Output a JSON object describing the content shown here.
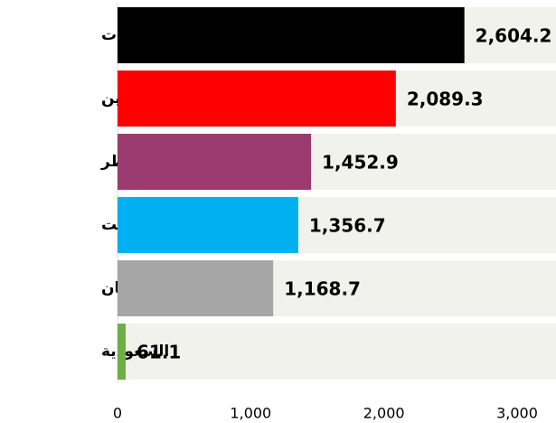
{
  "chart_data": {
    "type": "bar",
    "orientation": "horizontal",
    "categories": [
      "الإمارات",
      "البحرين",
      "قطر",
      "الكويت",
      "عمان",
      "السعودية"
    ],
    "values": [
      2604.2,
      2089.3,
      1452.9,
      1356.7,
      1168.7,
      61.1
    ],
    "value_labels": [
      "2,604.2",
      "2,089.3",
      "1,452.9",
      "1,356.7",
      "1,168.7",
      "61.1"
    ],
    "colors": [
      "#000000",
      "#ff0000",
      "#9b3b6f",
      "#00b0f0",
      "#a6a6a6",
      "#70ad47"
    ],
    "xlim": [
      0,
      3000
    ],
    "xticks": [
      0,
      {
        "value": 1000,
        "label": "1,000"
      },
      {
        "value": 2000,
        "label": "2,000"
      },
      {
        "value": 3000,
        "label": "3,000"
      }
    ]
  }
}
